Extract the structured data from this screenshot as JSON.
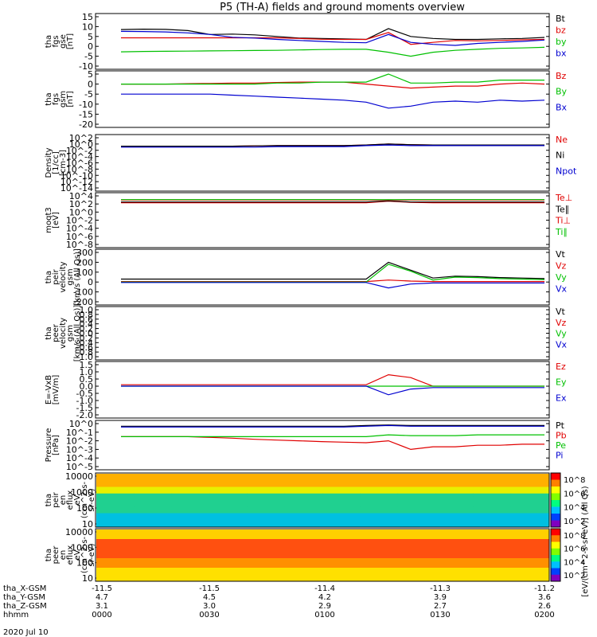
{
  "title": "P5 (TH-A) fields and ground moments overview",
  "chart_data": [
    {
      "type": "line",
      "panel": "tha_fgs_gse",
      "ylabel": [
        "tha",
        "fgs",
        "gse",
        "[nT]"
      ],
      "yticks": [
        "15",
        "10",
        "5",
        "0",
        "-5",
        "-10"
      ],
      "ylim": [
        -10,
        15
      ],
      "series": [
        {
          "name": "Bt",
          "color": "#000000",
          "values": [
            8.5,
            8.7,
            8.6,
            8,
            6,
            6.2,
            5.8,
            5,
            4.2,
            4,
            3.8,
            3.5,
            9,
            5,
            4,
            3.5,
            3.5,
            3.8,
            4,
            4.5
          ]
        },
        {
          "name": "bz",
          "color": "#e00000",
          "values": [
            4.3,
            4.3,
            4.3,
            4.3,
            4.3,
            4.3,
            4.3,
            4.3,
            4,
            3.6,
            3.5,
            3.5,
            7,
            1,
            2,
            3,
            2.8,
            3,
            3.3,
            3.5
          ]
        },
        {
          "name": "by",
          "color": "#00c000",
          "values": [
            -2.8,
            -2.6,
            -2.5,
            -2.4,
            -2.3,
            -2.2,
            -2.1,
            -2,
            -1.8,
            -1.6,
            -1.5,
            -1.5,
            -3,
            -5,
            -3,
            -2,
            -1.5,
            -1,
            -0.8,
            -0.5
          ]
        },
        {
          "name": "bx",
          "color": "#0000d0",
          "values": [
            7.6,
            7.5,
            7.3,
            6.8,
            6,
            4.6,
            4.2,
            3.5,
            3,
            2.5,
            2,
            1.8,
            6,
            2,
            1,
            0.5,
            1.5,
            2,
            2.5,
            3.2
          ]
        }
      ]
    },
    {
      "type": "line",
      "panel": "tha_fgs_gsm",
      "ylabel": [
        "tha",
        "fgs",
        "gsm",
        "[nT]"
      ],
      "yticks": [
        "5",
        "0",
        "-5",
        "-10",
        "-15",
        "-20"
      ],
      "ylim": [
        -20,
        5
      ],
      "series": [
        {
          "name": "Bz",
          "color": "#e00000",
          "values": [
            0,
            0,
            0,
            0.2,
            0.3,
            0.5,
            0.5,
            0.8,
            1,
            1,
            1,
            0,
            -1,
            -2,
            -1.5,
            -1,
            -1,
            0,
            0.5,
            0
          ]
        },
        {
          "name": "By",
          "color": "#00c000",
          "values": [
            0,
            0,
            0,
            0,
            0,
            0,
            0,
            0.5,
            0.5,
            1,
            1,
            1,
            5,
            0.5,
            0.5,
            1,
            1,
            2,
            2,
            2
          ]
        },
        {
          "name": "Bx",
          "color": "#0000d0",
          "values": [
            -5,
            -5,
            -5,
            -5,
            -5,
            -5.5,
            -6,
            -6.5,
            -7,
            -7.5,
            -8,
            -9,
            -12,
            -11,
            -9,
            -8.5,
            -9,
            -8,
            -8.5,
            -8
          ]
        }
      ]
    },
    {
      "type": "line",
      "panel": "density",
      "ylabel": [
        "Density",
        "[1/cc]",
        "[cm-3]"
      ],
      "yticks": [
        "10^2",
        "10^0",
        "10^-2",
        "10^-4",
        "10^-6",
        "10^-8",
        "10^-10",
        "10^-12",
        "10^-14"
      ],
      "scale": "log",
      "series": [
        {
          "name": "Ne",
          "color": "#e00000",
          "values": [
            0.2,
            0.2,
            0.2,
            0.2,
            0.2,
            0.2,
            0.25,
            0.3,
            0.3,
            0.3,
            0.3,
            0.5,
            1,
            0.6,
            0.5,
            0.5,
            0.5,
            0.5,
            0.5,
            0.5
          ]
        },
        {
          "name": "Ni",
          "color": "#000000",
          "values": [
            0.2,
            0.2,
            0.2,
            0.2,
            0.2,
            0.2,
            0.25,
            0.3,
            0.3,
            0.3,
            0.3,
            0.5,
            1,
            0.6,
            0.5,
            0.5,
            0.5,
            0.5,
            0.5,
            0.5
          ]
        },
        {
          "name": "Npot",
          "color": "#0000d0",
          "values": [
            0.1,
            0.1,
            0.1,
            0.1,
            0.1,
            0.1,
            0.1,
            0.15,
            0.15,
            0.15,
            0.15,
            0.3,
            0.5,
            0.3,
            0.3,
            0.3,
            0.3,
            0.3,
            0.3,
            0.3
          ]
        }
      ]
    },
    {
      "type": "line",
      "panel": "temperature",
      "ylabel": [
        "moqt3",
        "[eV]"
      ],
      "yticks": [
        "10^4",
        "10^2",
        "10^0",
        "10^-2",
        "10^-4",
        "10^-6",
        "10^-8"
      ],
      "scale": "log",
      "series": [
        {
          "name": "Te⊥",
          "color": "#e00000",
          "values": [
            200,
            200,
            200,
            200,
            200,
            200,
            200,
            200,
            200,
            200,
            200,
            200,
            500,
            250,
            200,
            200,
            200,
            200,
            200,
            200
          ]
        },
        {
          "name": "Te∥",
          "color": "#000000",
          "values": [
            300,
            300,
            300,
            300,
            300,
            300,
            300,
            300,
            300,
            300,
            300,
            300,
            600,
            300,
            300,
            300,
            300,
            300,
            300,
            300
          ]
        },
        {
          "name": "Ti⊥",
          "color": "#e00000",
          "values": [
            1000,
            1000,
            1000,
            1000,
            1000,
            1000,
            1000,
            1000,
            1000,
            1000,
            1000,
            1000,
            1000,
            1000,
            1000,
            1000,
            1000,
            1000,
            1000,
            1000
          ]
        },
        {
          "name": "Ti∥",
          "color": "#00c000",
          "values": [
            1200,
            1200,
            1200,
            1200,
            1200,
            1200,
            1200,
            1200,
            1200,
            1200,
            1200,
            1200,
            1200,
            1200,
            1200,
            1200,
            1200,
            1200,
            1200,
            1200
          ]
        }
      ]
    },
    {
      "type": "line",
      "panel": "peir_velocity",
      "ylabel": [
        "tha",
        "peir",
        "velocity",
        "gsm",
        "[km/s (All Qs)]"
      ],
      "yticks": [
        "300",
        "200",
        "100",
        "0",
        "-100",
        "-200"
      ],
      "ylim": [
        -200,
        300
      ],
      "series": [
        {
          "name": "Vt",
          "color": "#000000",
          "values": [
            30,
            30,
            30,
            30,
            30,
            30,
            30,
            30,
            30,
            30,
            30,
            30,
            200,
            120,
            40,
            60,
            55,
            45,
            40,
            35
          ]
        },
        {
          "name": "Vz",
          "color": "#e00000",
          "values": [
            5,
            5,
            5,
            5,
            5,
            5,
            5,
            5,
            5,
            5,
            5,
            5,
            20,
            10,
            5,
            5,
            5,
            5,
            5,
            5
          ]
        },
        {
          "name": "Vy",
          "color": "#00c000",
          "values": [
            0,
            0,
            0,
            0,
            0,
            0,
            0,
            0,
            0,
            0,
            0,
            0,
            180,
            110,
            20,
            50,
            45,
            35,
            30,
            25
          ]
        },
        {
          "name": "Vx",
          "color": "#0000d0",
          "values": [
            -5,
            -5,
            -5,
            -5,
            -5,
            -5,
            -5,
            -5,
            -5,
            -5,
            -5,
            -5,
            -60,
            -20,
            -10,
            -10,
            -10,
            -10,
            -10,
            -10
          ]
        }
      ]
    },
    {
      "type": "line",
      "panel": "peer_velocity",
      "ylabel": [
        "tha",
        "peer",
        "velocity",
        "gsm",
        "[km/s (All Qs)]"
      ],
      "yticks": [
        "1.0",
        "0.8",
        "0.6",
        "0.4",
        "0.2",
        "0.0",
        "-0.2",
        "-0.4",
        "-0.6",
        "-0.8",
        "-1.0"
      ],
      "ylim": [
        -1,
        1
      ],
      "series": [
        {
          "name": "Vt",
          "color": "#000000",
          "values": []
        },
        {
          "name": "Vz",
          "color": "#e00000",
          "values": []
        },
        {
          "name": "Vy",
          "color": "#00c000",
          "values": []
        },
        {
          "name": "Vx",
          "color": "#0000d0",
          "values": []
        }
      ]
    },
    {
      "type": "line",
      "panel": "E_field",
      "ylabel": [
        "E=-VxB",
        "[mV/m]"
      ],
      "yticks": [
        "1.5",
        "1.0",
        "0.5",
        "0.0",
        "-0.5",
        "-1.0",
        "-1.5",
        "-2.0"
      ],
      "ylim": [
        -2,
        1.5
      ],
      "series": [
        {
          "name": "Ez",
          "color": "#e00000",
          "values": [
            0.1,
            0.1,
            0.1,
            0.1,
            0.1,
            0.1,
            0.1,
            0.1,
            0.1,
            0.1,
            0.1,
            0.1,
            0.8,
            0.6,
            0.0,
            0.0,
            0.0,
            0.0,
            0.0,
            0.0
          ]
        },
        {
          "name": "Ey",
          "color": "#00c000",
          "values": [
            0.0,
            0.0,
            0.0,
            0.0,
            0.0,
            0.0,
            0.0,
            0.0,
            0.0,
            0.0,
            0.0,
            0.0,
            0.0,
            0.0,
            0.0,
            0.0,
            0.0,
            0.0,
            0.0,
            0.0
          ]
        },
        {
          "name": "Ex",
          "color": "#0000d0",
          "values": [
            0.0,
            0.0,
            0.0,
            0.0,
            0.0,
            0.0,
            0.0,
            0.0,
            0.0,
            0.0,
            0.0,
            0.0,
            -0.6,
            -0.2,
            -0.1,
            -0.1,
            -0.1,
            -0.1,
            -0.1,
            -0.1
          ]
        }
      ]
    },
    {
      "type": "line",
      "panel": "pressure",
      "ylabel": [
        "Pressure",
        "[nPa]"
      ],
      "yticks": [
        "10^0",
        "10^-1",
        "10^-2",
        "10^-3",
        "10^-4",
        "10^-5"
      ],
      "scale": "log",
      "series": [
        {
          "name": "Pt",
          "color": "#000000",
          "values": [
            0.5,
            0.5,
            0.5,
            0.5,
            0.5,
            0.5,
            0.5,
            0.5,
            0.5,
            0.5,
            0.5,
            0.6,
            0.7,
            0.6,
            0.6,
            0.6,
            0.6,
            0.6,
            0.6,
            0.6
          ]
        },
        {
          "name": "Pb",
          "color": "#e00000",
          "values": [
            0.03,
            0.03,
            0.03,
            0.03,
            0.025,
            0.02,
            0.015,
            0.012,
            0.01,
            0.008,
            0.007,
            0.006,
            0.01,
            0.001,
            0.002,
            0.002,
            0.003,
            0.003,
            0.004,
            0.004
          ]
        },
        {
          "name": "Pe",
          "color": "#00c000",
          "values": [
            0.03,
            0.03,
            0.03,
            0.03,
            0.03,
            0.03,
            0.03,
            0.03,
            0.03,
            0.03,
            0.03,
            0.03,
            0.05,
            0.04,
            0.04,
            0.04,
            0.05,
            0.05,
            0.05,
            0.05
          ]
        },
        {
          "name": "Pi",
          "color": "#0000d0",
          "values": [
            0.4,
            0.4,
            0.4,
            0.4,
            0.4,
            0.4,
            0.4,
            0.4,
            0.4,
            0.4,
            0.4,
            0.5,
            0.6,
            0.5,
            0.5,
            0.5,
            0.5,
            0.5,
            0.5,
            0.5
          ]
        }
      ]
    },
    {
      "type": "heatmap",
      "panel": "peir_en_eflux",
      "ylabel": [
        "tha",
        "peir",
        "en",
        "eflux",
        "eV",
        "(cm^2-s-",
        "sr-eV)"
      ],
      "yticks": [
        "10000",
        "1000",
        "100",
        "10"
      ],
      "colorbar": {
        "label": "[eV/(cm^2-s-sr-eV)] (All Qs)",
        "ticks": [
          "10^8",
          "10^6",
          "10^4",
          "10^2"
        ]
      }
    },
    {
      "type": "heatmap",
      "panel": "peer_en_eflux",
      "ylabel": [
        "tha",
        "peer",
        "en",
        "eflux",
        "eV",
        "(cm^2-s-",
        "sr-eV)"
      ],
      "yticks": [
        "10000",
        "1000",
        "100",
        "10"
      ],
      "colorbar": {
        "label": "[eV/(cm^2-s-sr-eV)] (All Qs)",
        "ticks": [
          "10^8",
          "10^6",
          "10^4",
          "10^2"
        ]
      }
    }
  ],
  "x_axis": {
    "rows": [
      {
        "label": "tha_X-GSM",
        "values": [
          "-11.5",
          "-11.5",
          "-11.4",
          "-11.3",
          "-11.2"
        ]
      },
      {
        "label": "tha_Y-GSM",
        "values": [
          "4.7",
          "4.5",
          "4.2",
          "3.9",
          "3.6"
        ]
      },
      {
        "label": "tha_Z-GSM",
        "values": [
          "3.1",
          "3.0",
          "2.9",
          "2.7",
          "2.6"
        ]
      },
      {
        "label": "hhmm",
        "values": [
          "0000",
          "0030",
          "0100",
          "0130",
          "0200"
        ]
      }
    ],
    "date": "2020 Jul 10"
  }
}
